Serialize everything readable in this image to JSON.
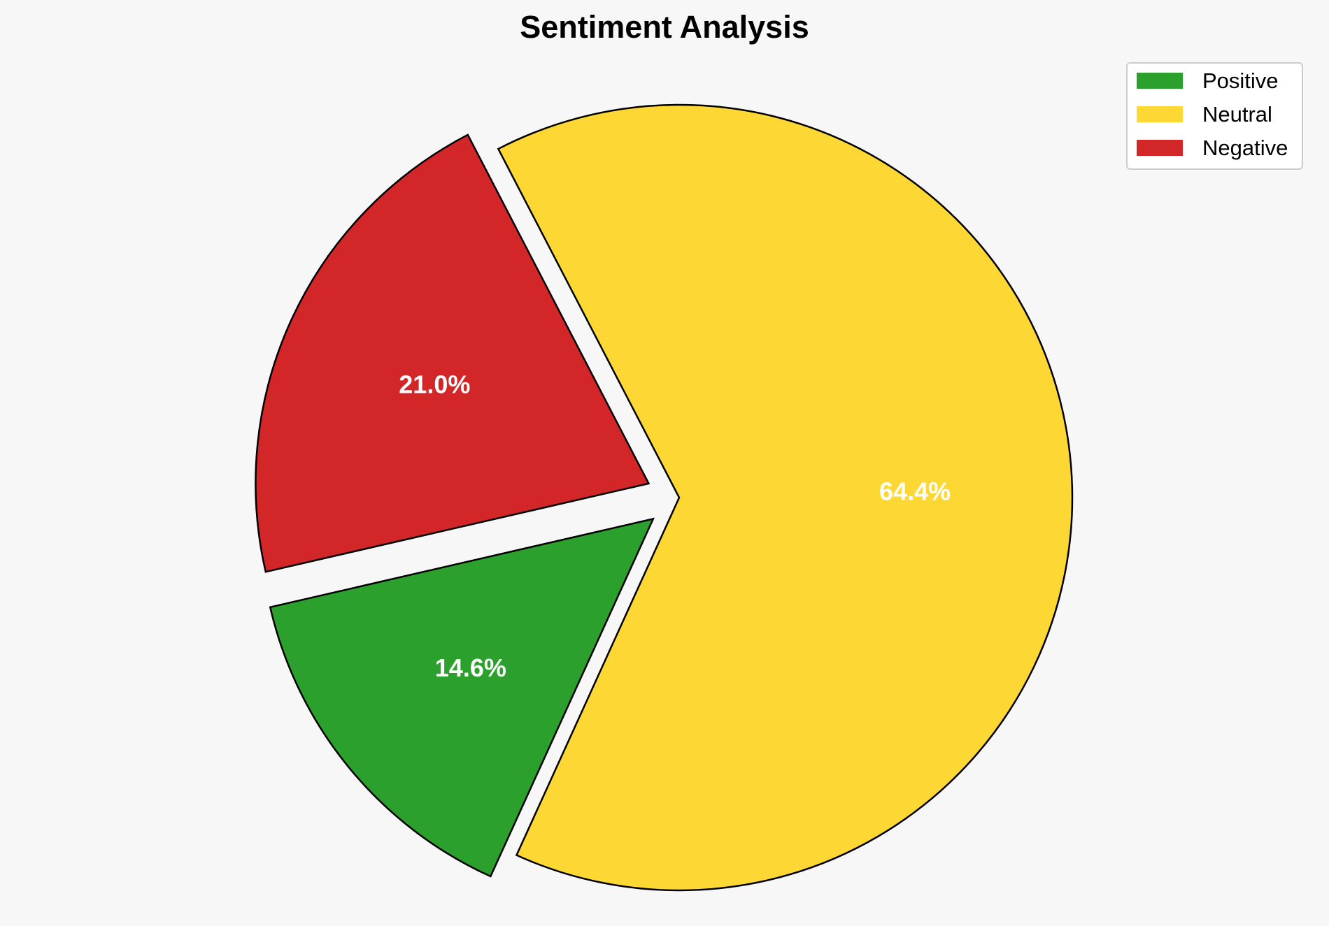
{
  "chart_data": {
    "type": "pie",
    "title": "Sentiment Analysis",
    "slices": [
      {
        "label": "Positive",
        "value": 14.6,
        "value_label": "14.6%",
        "color": "#2ca02c",
        "exploded": true
      },
      {
        "label": "Neutral",
        "value": 64.4,
        "value_label": "64.4%",
        "color": "#fdd835",
        "exploded": false
      },
      {
        "label": "Negative",
        "value": 21.0,
        "value_label": "21.0%",
        "color": "#d32628",
        "exploded": true
      }
    ],
    "start_angle_deg": 193,
    "direction": "counterclockwise",
    "edge_color": "#000000",
    "legend": {
      "placement": "top-right",
      "entries": [
        "Positive",
        "Neutral",
        "Negative"
      ]
    }
  }
}
